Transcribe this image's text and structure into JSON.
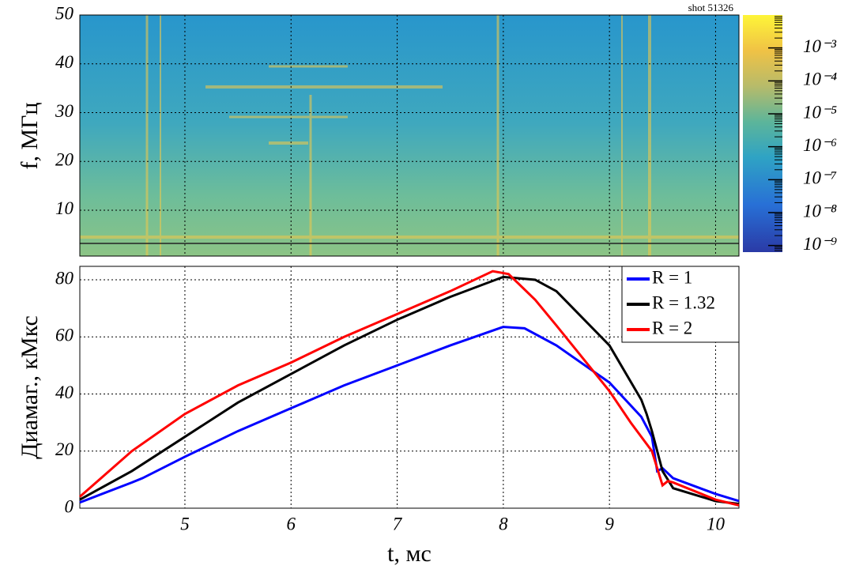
{
  "chart_data": [
    {
      "type": "heatmap",
      "annotation": "shot 51326",
      "y_label": "f, МГц",
      "xlim": [
        4.01,
        10.22
      ],
      "xticks": [
        5,
        6,
        7,
        8,
        9,
        10
      ],
      "ylim": [
        0.6,
        50
      ],
      "yticks": [
        10,
        20,
        30,
        40,
        50
      ],
      "grid": true,
      "colorbar": {
        "log": true,
        "zlim": [
          6.3e-10,
          0.01
        ],
        "zticks": [
          {
            "value": 1e-09,
            "label": "10⁻⁹"
          },
          {
            "value": 1e-08,
            "label": "10⁻⁸"
          },
          {
            "value": 1e-07,
            "label": "10⁻⁷"
          },
          {
            "value": 1e-06,
            "label": "10⁻⁶"
          },
          {
            "value": 1e-05,
            "label": "10⁻⁵"
          },
          {
            "value": 0.0001,
            "label": "10⁻⁴"
          },
          {
            "value": 0.001,
            "label": "10⁻³"
          }
        ]
      }
    },
    {
      "type": "line",
      "x_label": "t, мс",
      "y_label": "Диамаг., кМкс",
      "xlim": [
        4.01,
        10.22
      ],
      "xticks": [
        5,
        6,
        7,
        8,
        9,
        10
      ],
      "ylim": [
        0,
        84.7
      ],
      "yticks": [
        0,
        20,
        40,
        60,
        80
      ],
      "grid": true,
      "legend": "top-right",
      "series": [
        {
          "name": "R = 1",
          "color": "#0000ff",
          "x": [
            4.01,
            4.5,
            4.6,
            5,
            5.5,
            6,
            6.5,
            7,
            7.5,
            8,
            8.2,
            8.5,
            9,
            9.3,
            9.4,
            9.45,
            9.5,
            9.6,
            10,
            10.22
          ],
          "values": [
            2,
            9,
            10.5,
            18,
            27,
            35,
            43,
            50,
            57,
            63.5,
            63,
            57,
            44,
            32,
            25,
            13,
            14,
            10.5,
            5,
            2.5
          ]
        },
        {
          "name": "R = 1.32",
          "color": "#000000",
          "x": [
            4.01,
            4.5,
            5,
            5.5,
            6,
            6.5,
            7,
            7.5,
            8,
            8.3,
            8.5,
            9,
            9.3,
            9.35,
            9.4,
            9.5,
            9.6,
            10,
            10.22
          ],
          "values": [
            3,
            13,
            25,
            37,
            47,
            57,
            66,
            74,
            81,
            80,
            76,
            57,
            38,
            33,
            27,
            13,
            7,
            2.5,
            1.5
          ]
        },
        {
          "name": "R = 2",
          "color": "#ff0000",
          "x": [
            4.01,
            4.5,
            5,
            5.5,
            6,
            6.5,
            7,
            7.5,
            7.9,
            8.05,
            8.3,
            8.5,
            9,
            9.2,
            9.4,
            9.5,
            9.55,
            9.6,
            10,
            10.22
          ],
          "values": [
            4,
            20,
            33,
            43,
            51,
            60,
            68,
            76,
            83,
            82,
            73,
            64,
            41,
            30,
            20,
            8,
            9.5,
            9,
            3,
            1
          ]
        }
      ]
    }
  ]
}
